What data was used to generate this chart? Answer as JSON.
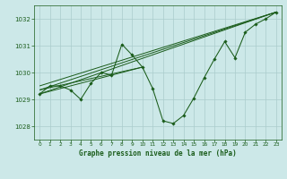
{
  "title": "Graphe pression niveau de la mer (hPa)",
  "bg_color": "#cce8e8",
  "grid_color": "#aacccc",
  "line_color": "#1a5c1a",
  "xlim": [
    -0.5,
    23.5
  ],
  "ylim": [
    1027.5,
    1032.5
  ],
  "yticks": [
    1028,
    1029,
    1030,
    1031,
    1032
  ],
  "xticks": [
    0,
    1,
    2,
    3,
    4,
    5,
    6,
    7,
    8,
    9,
    10,
    11,
    12,
    13,
    14,
    15,
    16,
    17,
    18,
    19,
    20,
    21,
    22,
    23
  ],
  "series1_x": [
    0,
    1,
    2,
    3,
    4,
    5,
    6,
    7,
    8,
    9,
    10,
    11,
    12,
    13,
    14,
    15,
    16,
    17,
    18,
    19,
    20,
    21,
    22,
    23
  ],
  "series1_y": [
    1029.2,
    1029.5,
    1029.5,
    1029.35,
    1029.0,
    1029.6,
    1030.0,
    1029.9,
    1031.05,
    1030.65,
    1030.2,
    1029.4,
    1028.2,
    1028.1,
    1028.4,
    1029.05,
    1029.8,
    1030.5,
    1031.15,
    1030.55,
    1031.5,
    1031.8,
    1032.0,
    1032.25
  ],
  "trend_lines": [
    {
      "x": [
        0,
        23
      ],
      "y": [
        1029.2,
        1032.25
      ]
    },
    {
      "x": [
        0,
        23
      ],
      "y": [
        1029.35,
        1032.25
      ]
    },
    {
      "x": [
        0,
        23
      ],
      "y": [
        1029.5,
        1032.25
      ]
    },
    {
      "x": [
        0,
        10
      ],
      "y": [
        1029.2,
        1030.2
      ]
    },
    {
      "x": [
        0,
        10
      ],
      "y": [
        1029.35,
        1030.2
      ]
    }
  ]
}
